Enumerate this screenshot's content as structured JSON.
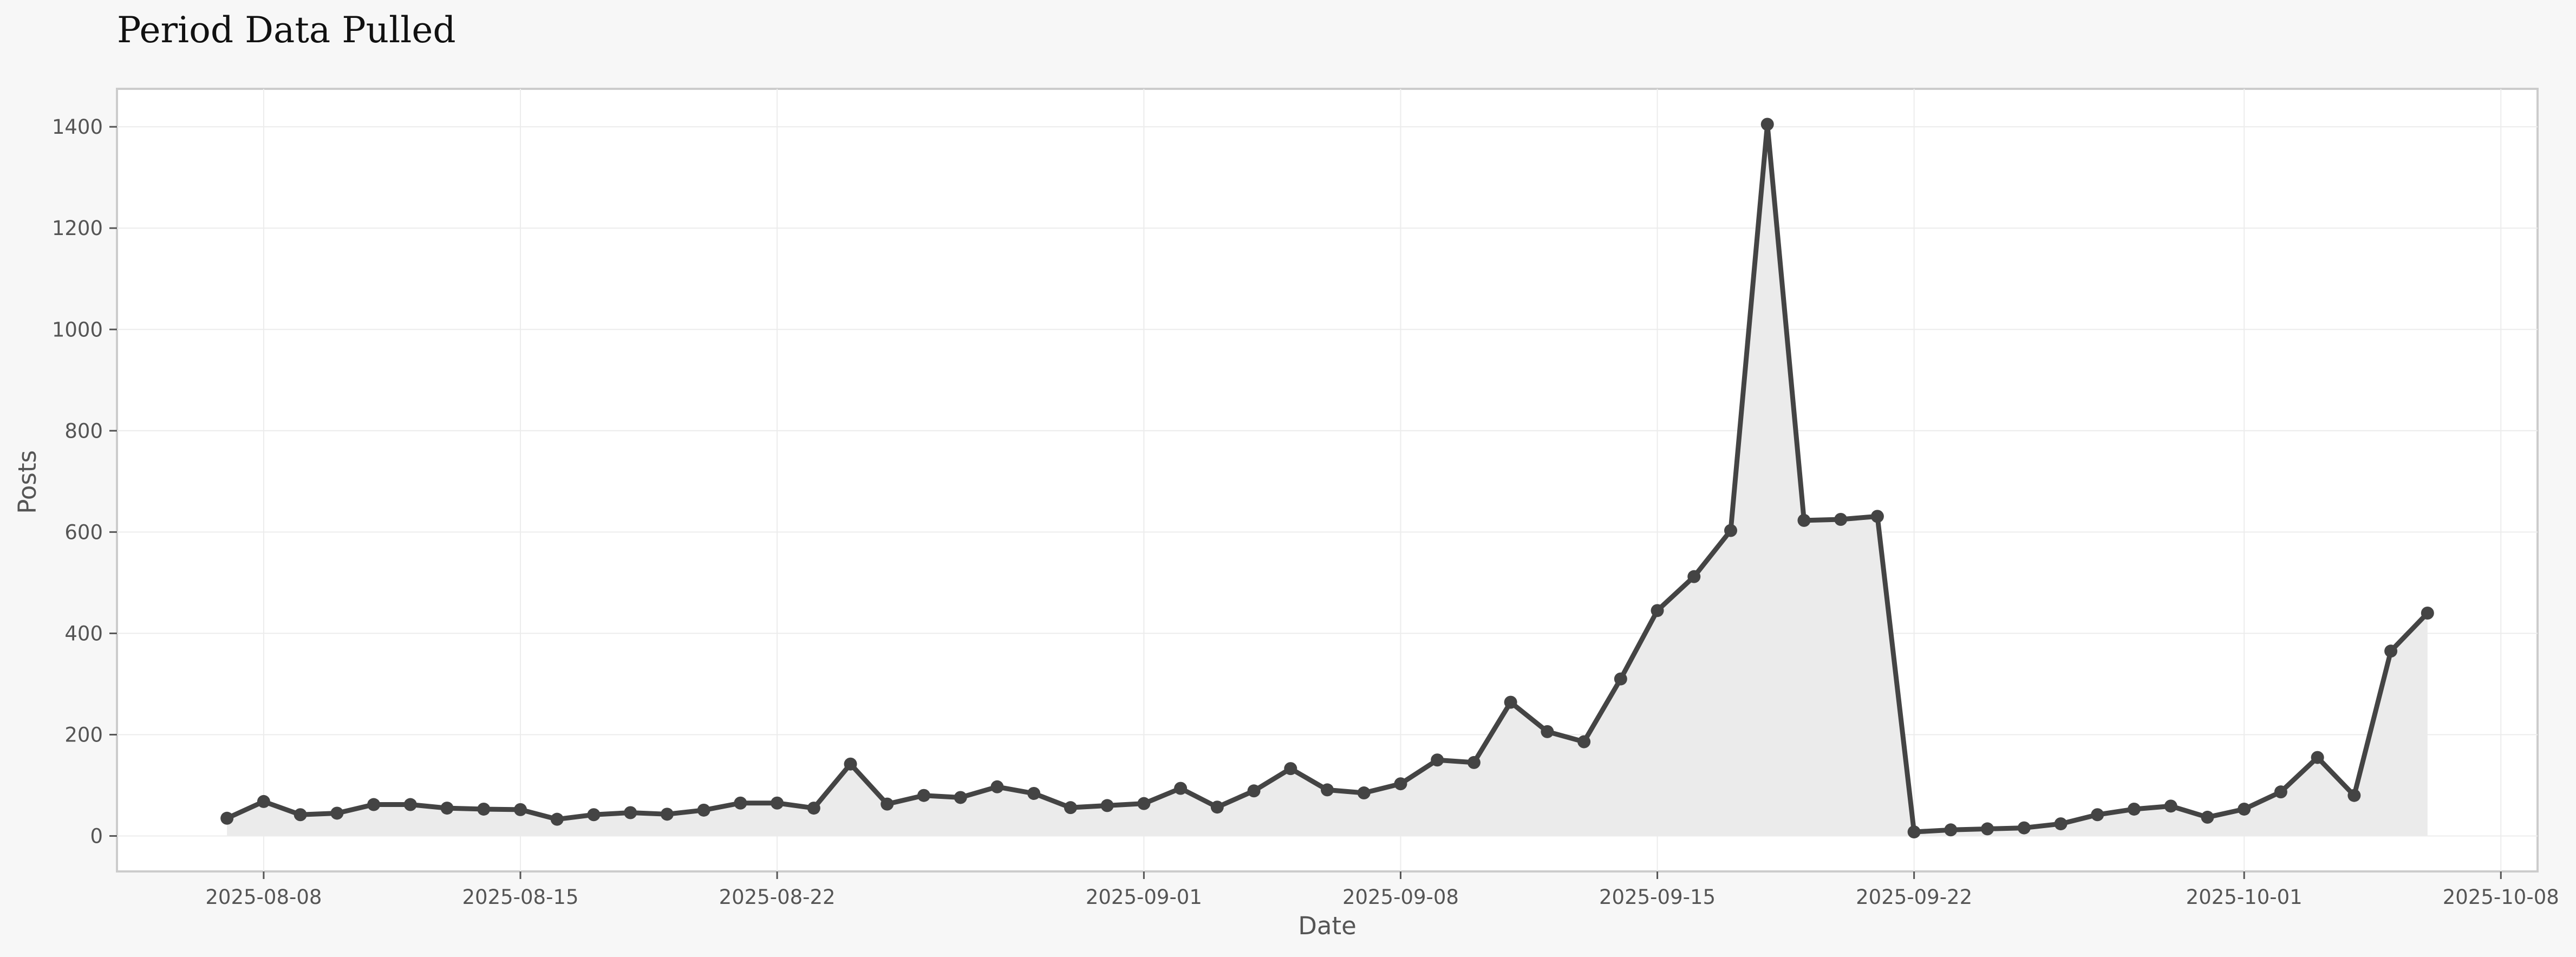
{
  "chart_data": {
    "type": "line",
    "title": "Period Data Pulled",
    "xlabel": "Date",
    "ylabel": "Posts",
    "x_ticks": [
      "2025-08-08",
      "2025-08-15",
      "2025-08-22",
      "2025-09-01",
      "2025-09-08",
      "2025-09-15",
      "2025-09-22",
      "2025-10-01",
      "2025-10-08"
    ],
    "y_ticks": [
      0,
      200,
      400,
      600,
      800,
      1000,
      1200,
      1400
    ],
    "xlim": [
      "2025-08-04",
      "2025-10-09"
    ],
    "ylim": [
      -70,
      1475
    ],
    "grid": true,
    "fill_under": true,
    "colors": {
      "line": "#444444",
      "fill": "#ebebeb",
      "grid": "#ececec",
      "frame": "#cccccc",
      "plot_bg": "#ffffff",
      "page_bg": "#f7f7f7"
    },
    "series": [
      {
        "x": [
          "2025-08-07",
          "2025-08-08",
          "2025-08-09",
          "2025-08-10",
          "2025-08-11",
          "2025-08-12",
          "2025-08-13",
          "2025-08-14",
          "2025-08-15",
          "2025-08-16",
          "2025-08-17",
          "2025-08-18",
          "2025-08-19",
          "2025-08-20",
          "2025-08-21",
          "2025-08-22",
          "2025-08-23",
          "2025-08-24",
          "2025-08-25",
          "2025-08-26",
          "2025-08-27",
          "2025-08-28",
          "2025-08-29",
          "2025-08-30",
          "2025-08-31",
          "2025-09-01",
          "2025-09-02",
          "2025-09-03",
          "2025-09-04",
          "2025-09-05",
          "2025-09-06",
          "2025-09-07",
          "2025-09-08",
          "2025-09-09",
          "2025-09-10",
          "2025-09-11",
          "2025-09-12",
          "2025-09-13",
          "2025-09-14",
          "2025-09-15",
          "2025-09-16",
          "2025-09-17",
          "2025-09-18",
          "2025-09-19",
          "2025-09-20",
          "2025-09-21",
          "2025-09-22",
          "2025-09-23",
          "2025-09-24",
          "2025-09-25",
          "2025-09-26",
          "2025-09-27",
          "2025-09-28",
          "2025-09-29",
          "2025-09-30",
          "2025-10-01",
          "2025-10-02",
          "2025-10-03",
          "2025-10-04",
          "2025-10-05",
          "2025-10-06"
        ],
        "values": [
          35,
          68,
          42,
          45,
          62,
          62,
          55,
          53,
          52,
          33,
          42,
          46,
          43,
          51,
          65,
          65,
          55,
          142,
          63,
          80,
          76,
          97,
          84,
          56,
          60,
          64,
          94,
          57,
          89,
          133,
          91,
          85,
          103,
          150,
          145,
          264,
          206,
          186,
          310,
          445,
          512,
          603,
          1405,
          623,
          625,
          631,
          8,
          12,
          14,
          16,
          24,
          42,
          53,
          59,
          37,
          53,
          87,
          155,
          80,
          365,
          440
        ]
      }
    ]
  }
}
